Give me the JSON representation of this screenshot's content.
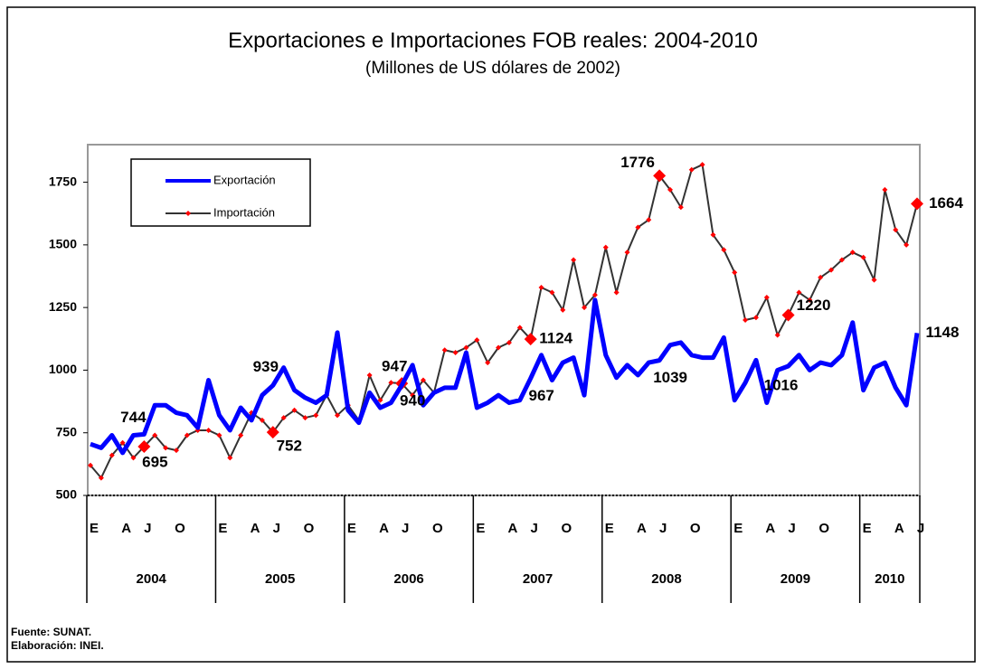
{
  "chart_data": {
    "type": "line",
    "title": "Exportaciones e Importaciones FOB reales: 2004-2010",
    "subtitle": "(Millones de US dólares de 2002)",
    "categories": [
      "E",
      null,
      null,
      "A",
      null,
      "J",
      null,
      null,
      "O",
      null,
      null,
      null,
      "E",
      null,
      null,
      "A",
      null,
      "J",
      null,
      null,
      "O",
      null,
      null,
      null,
      "E",
      null,
      null,
      "A",
      null,
      "J",
      null,
      null,
      "O",
      null,
      null,
      null,
      "E",
      null,
      null,
      "A",
      null,
      "J",
      null,
      null,
      "O",
      null,
      null,
      null,
      "E",
      null,
      null,
      "A",
      null,
      "J",
      null,
      null,
      "O",
      null,
      null,
      null,
      "E",
      null,
      null,
      "A",
      null,
      "J",
      null,
      null,
      "O",
      null,
      null,
      null,
      "E",
      null,
      null,
      "A",
      null,
      "J"
    ],
    "years": [
      "2004",
      "2005",
      "2006",
      "2007",
      "2008",
      "2009",
      "2010"
    ],
    "series": [
      {
        "name": "Exportación",
        "color": "#0000ff",
        "values": [
          705,
          690,
          740,
          670,
          740,
          744,
          860,
          860,
          830,
          820,
          770,
          960,
          820,
          760,
          850,
          800,
          900,
          939,
          1010,
          920,
          890,
          870,
          900,
          1150,
          840,
          790,
          910,
          850,
          870,
          940,
          1020,
          860,
          910,
          930,
          930,
          1070,
          850,
          870,
          900,
          870,
          880,
          967,
          1060,
          960,
          1030,
          1050,
          900,
          1280,
          1060,
          970,
          1020,
          980,
          1030,
          1039,
          1100,
          1110,
          1060,
          1050,
          1050,
          1130,
          880,
          950,
          1040,
          870,
          1000,
          1016,
          1060,
          1000,
          1030,
          1020,
          1060,
          1190,
          920,
          1010,
          1030,
          930,
          860,
          1148
        ],
        "value_labels": [
          null,
          null,
          null,
          null,
          null,
          "744",
          null,
          null,
          null,
          null,
          null,
          null,
          null,
          null,
          null,
          null,
          null,
          "939",
          null,
          null,
          null,
          null,
          null,
          null,
          null,
          null,
          null,
          null,
          null,
          "940",
          null,
          null,
          null,
          null,
          null,
          null,
          null,
          null,
          null,
          null,
          null,
          "967",
          null,
          null,
          null,
          null,
          null,
          null,
          null,
          null,
          null,
          null,
          null,
          "1039",
          null,
          null,
          null,
          null,
          null,
          null,
          null,
          null,
          null,
          null,
          null,
          "1016",
          null,
          null,
          null,
          null,
          null,
          null,
          null,
          null,
          null,
          null,
          null,
          "1148"
        ]
      },
      {
        "name": "Importación",
        "color": "#333333",
        "marker_color": "#ff0000",
        "values": [
          620,
          570,
          660,
          710,
          650,
          695,
          740,
          690,
          680,
          740,
          760,
          760,
          740,
          650,
          740,
          830,
          800,
          752,
          810,
          840,
          810,
          820,
          900,
          820,
          860,
          800,
          980,
          880,
          950,
          947,
          900,
          960,
          910,
          1080,
          1070,
          1090,
          1120,
          1030,
          1090,
          1110,
          1170,
          1124,
          1330,
          1310,
          1240,
          1440,
          1250,
          1300,
          1490,
          1310,
          1470,
          1570,
          1600,
          1776,
          1720,
          1650,
          1800,
          1820,
          1540,
          1480,
          1390,
          1200,
          1210,
          1290,
          1140,
          1220,
          1310,
          1280,
          1370,
          1400,
          1440,
          1470,
          1450,
          1360,
          1720,
          1560,
          1500,
          1664
        ],
        "value_labels": [
          null,
          null,
          null,
          null,
          null,
          "695",
          null,
          null,
          null,
          null,
          null,
          null,
          null,
          null,
          null,
          null,
          null,
          "752",
          null,
          null,
          null,
          null,
          null,
          null,
          null,
          null,
          null,
          null,
          null,
          "947",
          null,
          null,
          null,
          null,
          null,
          null,
          null,
          null,
          null,
          null,
          null,
          "1124",
          null,
          null,
          null,
          null,
          null,
          null,
          null,
          null,
          null,
          null,
          null,
          "1776",
          null,
          null,
          null,
          null,
          null,
          null,
          null,
          null,
          null,
          null,
          null,
          "1220",
          null,
          null,
          null,
          null,
          null,
          null,
          null,
          null,
          null,
          null,
          null,
          "1664"
        ]
      }
    ],
    "ylim": [
      500,
      1900
    ],
    "yticks": [
      500,
      750,
      1000,
      1250,
      1500,
      1750
    ],
    "notes": [
      "Fuente: SUNAT.",
      "Elaboración: INEI."
    ]
  }
}
